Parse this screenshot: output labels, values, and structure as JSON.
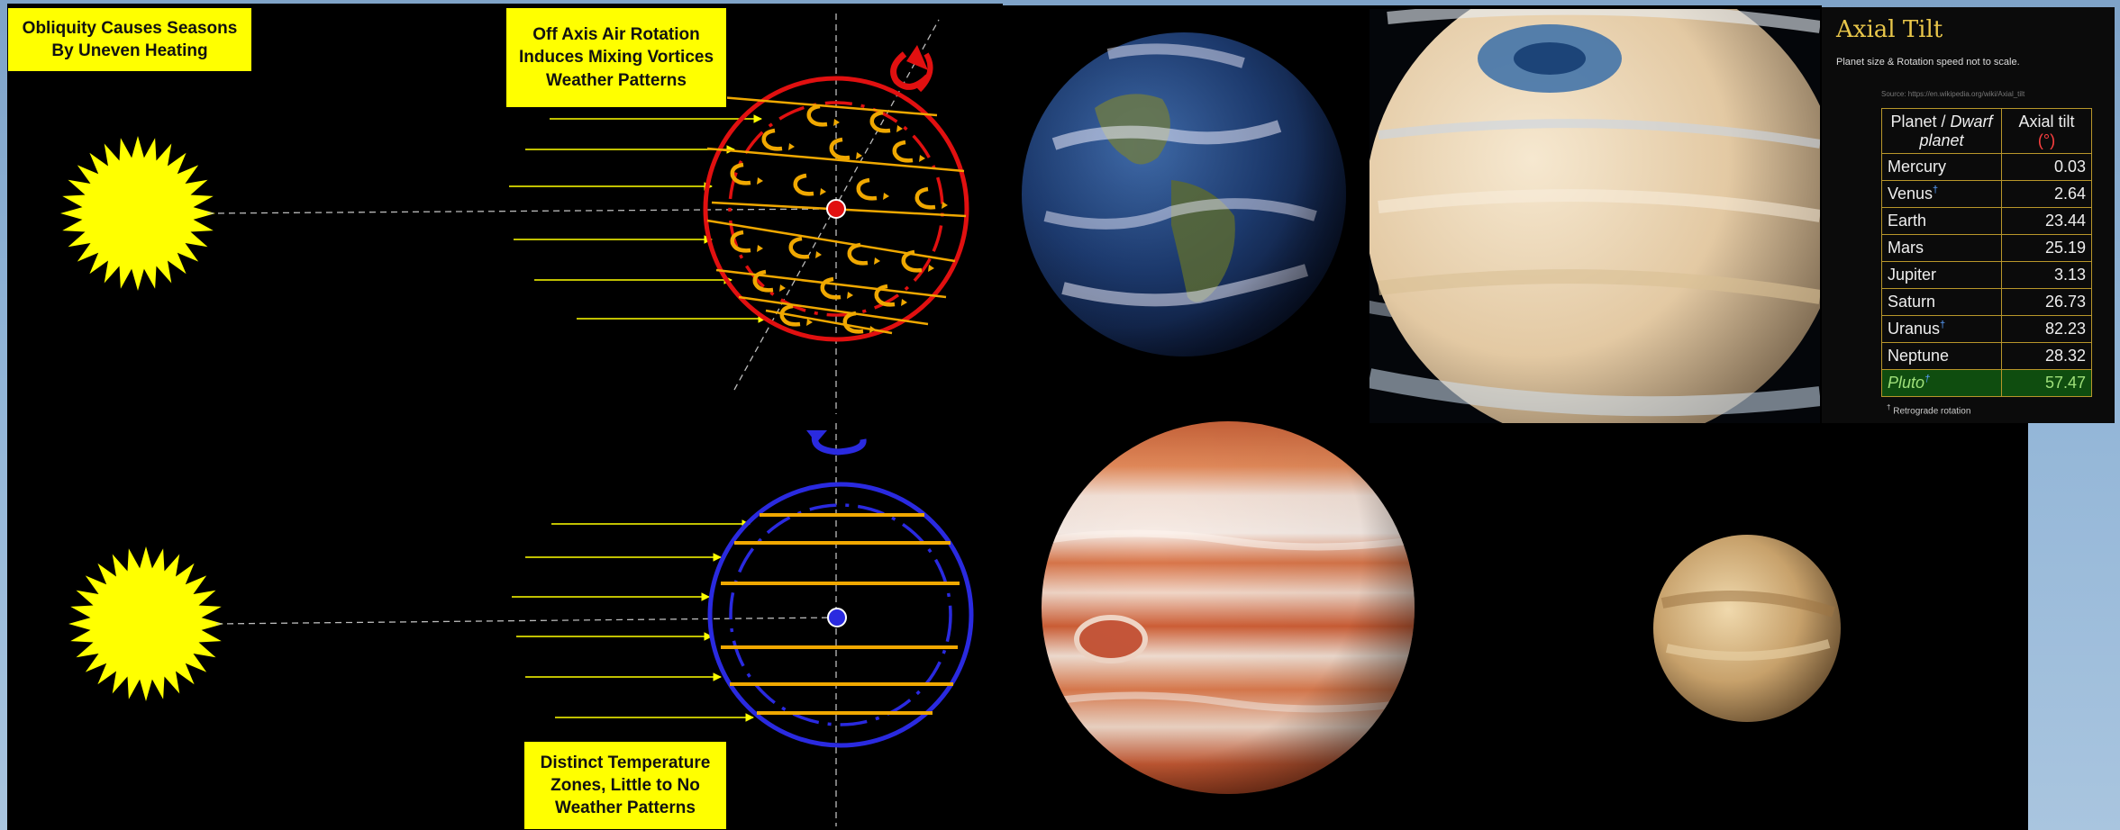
{
  "labels": {
    "seasons": "Obliquity Causes Seasons\nBy Uneven Heating",
    "vortices": "Off Axis Air Rotation\nInduces Mixing Vortices\nWeather Patterns",
    "zones": "Distinct Temperature\nZones, Little to No\nWeather Patterns"
  },
  "axial_tilt_panel": {
    "title": "Axial Tilt",
    "subtitle": "Planet size & Rotation speed not to scale.",
    "source": "Source: https://en.wikipedia.org/wiki/Axial_tilt",
    "col_planet": "Planet / ",
    "col_planet_italic": "Dwarf planet",
    "col_tilt": "Axial tilt",
    "col_unit": "(°)",
    "rows": [
      {
        "name": "Mercury",
        "value": "0.03",
        "retro": false
      },
      {
        "name": "Venus",
        "value": "2.64",
        "retro": true
      },
      {
        "name": "Earth",
        "value": "23.44",
        "retro": false
      },
      {
        "name": "Mars",
        "value": "25.19",
        "retro": false
      },
      {
        "name": "Jupiter",
        "value": "3.13",
        "retro": false
      },
      {
        "name": "Saturn",
        "value": "26.73",
        "retro": false
      },
      {
        "name": "Uranus",
        "value": "82.23",
        "retro": true
      },
      {
        "name": "Neptune",
        "value": "28.32",
        "retro": false
      },
      {
        "name": "Pluto",
        "value": "57.47",
        "retro": true
      }
    ],
    "footnote": "Retrograde rotation",
    "dagger": "†"
  },
  "colors": {
    "sun": "#ffff00",
    "tilted_planet": "#e11010",
    "upright_planet": "#2a2ae0",
    "bands": "#f0a800",
    "rays": "#ffff00",
    "table_border": "#b8962a",
    "pluto_row": "#0f4d0f"
  }
}
